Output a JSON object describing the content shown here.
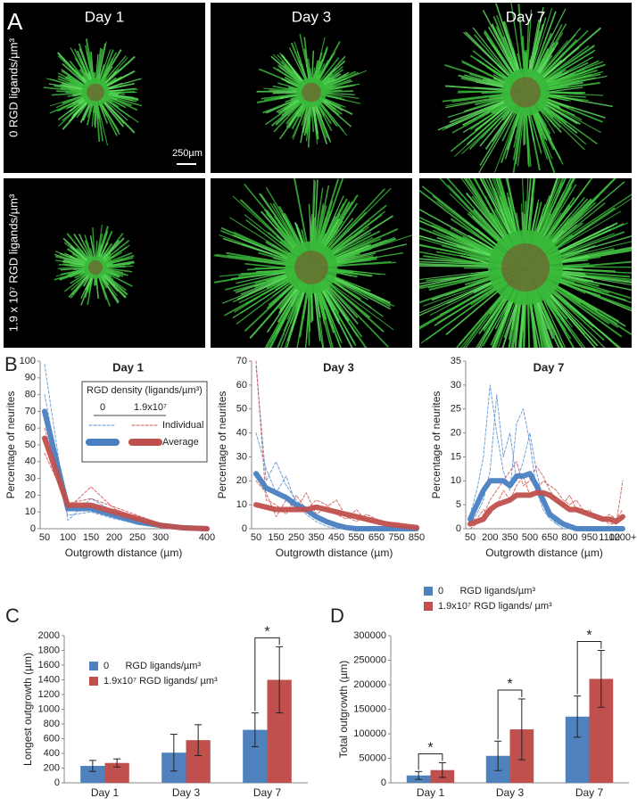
{
  "panel_a": {
    "label": "A",
    "columns": [
      "Day 1",
      "Day 3",
      "Day 7"
    ],
    "rows": [
      "0 RGD ligands/µm³",
      "1.9 x 10⁷ RGD ligands/µm³"
    ],
    "scale_bar": "250µm"
  },
  "panel_labels": {
    "b": "B",
    "c": "C",
    "d": "D"
  },
  "legend_b": {
    "title": "RGD density (ligands/µm³)",
    "columns": [
      "0",
      "1.9x10⁷"
    ],
    "rows": [
      "Individual",
      "Average"
    ]
  },
  "chart_data": [
    {
      "type": "line",
      "title": "Day 1",
      "xlabel": "Outgrowth distance (µm)",
      "ylabel": "Percentage of neurites",
      "categories": [
        50,
        100,
        150,
        200,
        250,
        300,
        null,
        400
      ],
      "ylim": [
        0,
        100
      ],
      "yticks": [
        0,
        10,
        20,
        30,
        40,
        50,
        60,
        70,
        80,
        90,
        100
      ],
      "series": [
        {
          "color": "#5b8fd0",
          "style": "dashed",
          "values": [
            98,
            5,
            18,
            10,
            5,
            2,
            0,
            0
          ]
        },
        {
          "color": "#5b8fd0",
          "style": "dashed",
          "values": [
            80,
            8,
            10,
            6,
            3,
            1,
            0,
            0
          ]
        },
        {
          "color": "#d0504d",
          "style": "dashed",
          "values": [
            60,
            12,
            25,
            12,
            6,
            2,
            0,
            0
          ]
        },
        {
          "color": "#d0504d",
          "style": "dashed",
          "values": [
            45,
            15,
            18,
            13,
            8,
            3,
            1,
            0
          ]
        },
        {
          "color": "#4a7fc1",
          "style": "solid",
          "values": [
            70,
            12,
            12,
            8,
            4,
            2,
            0.5,
            0
          ]
        },
        {
          "color": "#c0504d",
          "style": "solid",
          "values": [
            54,
            14,
            14,
            10,
            6,
            2,
            0.5,
            0
          ]
        }
      ]
    },
    {
      "type": "line",
      "title": "Day 3",
      "xlabel": "Outgrowth distance (µm)",
      "ylabel": "Percentage of neurites",
      "categories": [
        50,
        null,
        150,
        null,
        250,
        null,
        350,
        null,
        450,
        null,
        550,
        null,
        650,
        null,
        750,
        null,
        850
      ],
      "ylim": [
        0,
        70
      ],
      "yticks": [
        0,
        10,
        20,
        30,
        40,
        50,
        60,
        70
      ],
      "series": [
        {
          "color": "#5b8fd0",
          "style": "dashed",
          "values": [
            68,
            20,
            28,
            18,
            12,
            8,
            4,
            2,
            1,
            0,
            0,
            0,
            0,
            0,
            0,
            0,
            0
          ]
        },
        {
          "color": "#5b8fd0",
          "style": "dashed",
          "values": [
            40,
            25,
            15,
            22,
            10,
            6,
            3,
            1,
            0,
            0,
            0,
            0,
            0,
            0,
            0,
            0,
            0
          ]
        },
        {
          "color": "#d0504d",
          "style": "dashed",
          "values": [
            70,
            12,
            10,
            6,
            14,
            8,
            12,
            10,
            6,
            4,
            8,
            3,
            2,
            1,
            0,
            0,
            0
          ]
        },
        {
          "color": "#d0504d",
          "style": "dashed",
          "values": [
            20,
            15,
            5,
            12,
            8,
            15,
            6,
            9,
            12,
            5,
            3,
            6,
            4,
            2,
            2,
            1,
            0
          ]
        },
        {
          "color": "#4a7fc1",
          "style": "solid",
          "values": [
            23,
            17,
            15,
            13,
            10,
            8,
            5,
            3,
            1.5,
            0.5,
            0,
            0,
            0,
            0,
            0,
            0,
            0
          ]
        },
        {
          "color": "#c0504d",
          "style": "solid",
          "values": [
            10,
            9,
            8,
            8,
            8,
            8,
            9,
            8,
            7,
            6,
            5,
            4,
            3,
            2,
            1.5,
            1,
            0.5
          ]
        }
      ]
    },
    {
      "type": "line",
      "title": "Day 7",
      "xlabel": "Outgrowth distance (µm)",
      "ylabel": "Percentage of neurites",
      "categories": [
        50,
        null,
        null,
        200,
        null,
        null,
        350,
        null,
        null,
        500,
        null,
        null,
        650,
        null,
        null,
        800,
        null,
        null,
        950,
        null,
        null,
        1100,
        null,
        "1200+"
      ],
      "ylim": [
        0,
        35
      ],
      "yticks": [
        0,
        5,
        10,
        15,
        20,
        25,
        30,
        35
      ],
      "series": [
        {
          "color": "#5b8fd0",
          "style": "dashed",
          "values": [
            3,
            8,
            15,
            30,
            20,
            12,
            8,
            22,
            25,
            18,
            8,
            4,
            2,
            1,
            0,
            0,
            0,
            0,
            0,
            0,
            0,
            0,
            0,
            0
          ]
        },
        {
          "color": "#5b8fd0",
          "style": "dashed",
          "values": [
            1,
            3,
            6,
            12,
            28,
            15,
            20,
            10,
            14,
            20,
            12,
            6,
            3,
            1,
            1,
            0,
            0,
            0,
            0,
            0,
            0,
            0,
            0,
            0
          ]
        },
        {
          "color": "#d0504d",
          "style": "dashed",
          "values": [
            0,
            1,
            3,
            6,
            8,
            10,
            12,
            14,
            9,
            10,
            13,
            11,
            8,
            6,
            5,
            7,
            4,
            3,
            4,
            2,
            2,
            1,
            1,
            10
          ]
        },
        {
          "color": "#d0504d",
          "style": "dashed",
          "values": [
            2,
            2,
            4,
            3,
            5,
            8,
            6,
            9,
            11,
            7,
            8,
            10,
            9,
            8,
            6,
            5,
            6,
            4,
            3,
            3,
            2,
            3,
            2,
            4
          ]
        },
        {
          "color": "#4a7fc1",
          "style": "solid",
          "values": [
            2,
            5,
            8,
            10,
            10,
            10,
            9,
            11,
            11,
            11.5,
            9,
            6,
            3,
            2,
            1,
            0.5,
            0,
            0,
            0,
            0,
            0,
            0,
            0,
            0
          ]
        },
        {
          "color": "#c0504d",
          "style": "solid",
          "values": [
            1,
            1.5,
            2,
            4,
            5,
            5.5,
            6,
            7,
            7,
            7,
            7.5,
            7.5,
            7,
            6,
            5,
            4,
            4,
            3.5,
            3,
            2.5,
            2,
            2,
            1.5,
            2.5
          ]
        }
      ]
    },
    {
      "type": "bar",
      "ylabel": "Longest outgrowth (µm)",
      "categories": [
        "Day 1",
        "Day 3",
        "Day 7"
      ],
      "ylim": [
        0,
        2000
      ],
      "yticks": [
        0,
        200,
        400,
        600,
        800,
        1000,
        1200,
        1400,
        1600,
        1800,
        2000
      ],
      "series": [
        {
          "name": "0      RGD ligands/µm³",
          "color": "#4f81bd",
          "values": [
            230,
            410,
            720
          ],
          "errors": [
            75,
            250,
            230
          ]
        },
        {
          "name": "1.9x10⁷ RGD ligands/ µm³",
          "color": "#c0504d",
          "values": [
            270,
            580,
            1400
          ],
          "errors": [
            55,
            210,
            450
          ]
        }
      ],
      "annotations": [
        "*"
      ]
    },
    {
      "type": "bar",
      "ylabel": "Total outgrowth (µm)",
      "categories": [
        "Day 1",
        "Day 3",
        "Day 7"
      ],
      "ylim": [
        0,
        300000
      ],
      "yticks": [
        0,
        50000,
        100000,
        150000,
        200000,
        250000,
        300000
      ],
      "series": [
        {
          "name": "0      RGD ligands/µm³",
          "color": "#4f81bd",
          "values": [
            15000,
            55000,
            135000
          ],
          "errors": [
            8000,
            30000,
            42000
          ]
        },
        {
          "name": "1.9x10⁷ RGD ligands/ µm³",
          "color": "#c0504d",
          "values": [
            26000,
            109000,
            212000
          ],
          "errors": [
            15000,
            62000,
            58000
          ]
        }
      ],
      "annotations": [
        "*",
        "*",
        "*"
      ]
    }
  ]
}
